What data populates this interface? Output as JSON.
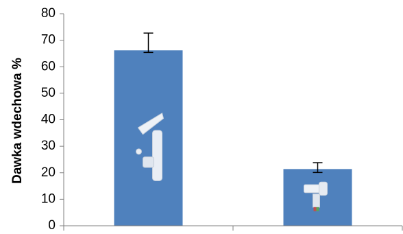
{
  "chart_data": {
    "type": "bar",
    "title": "",
    "xlabel": "",
    "ylabel": "Dawka wdechowa %",
    "ylim": [
      0,
      80
    ],
    "yticks": [
      0,
      10,
      20,
      30,
      40,
      50,
      60,
      70,
      80
    ],
    "yticklabels": [
      "0",
      "10",
      "20",
      "30",
      "40",
      "50",
      "60",
      "70",
      "80"
    ],
    "grid": false,
    "legend": "none",
    "categories": [
      "",
      ""
    ],
    "values": [
      66.2,
      21.4
    ],
    "error_plus": [
      6.5,
      2.4
    ],
    "error_minus": [
      0.8,
      1.3
    ],
    "bar_color": "#4f81bd",
    "bar_images": [
      "nebulizer-device-icon",
      "inhaler-device-icon"
    ]
  }
}
